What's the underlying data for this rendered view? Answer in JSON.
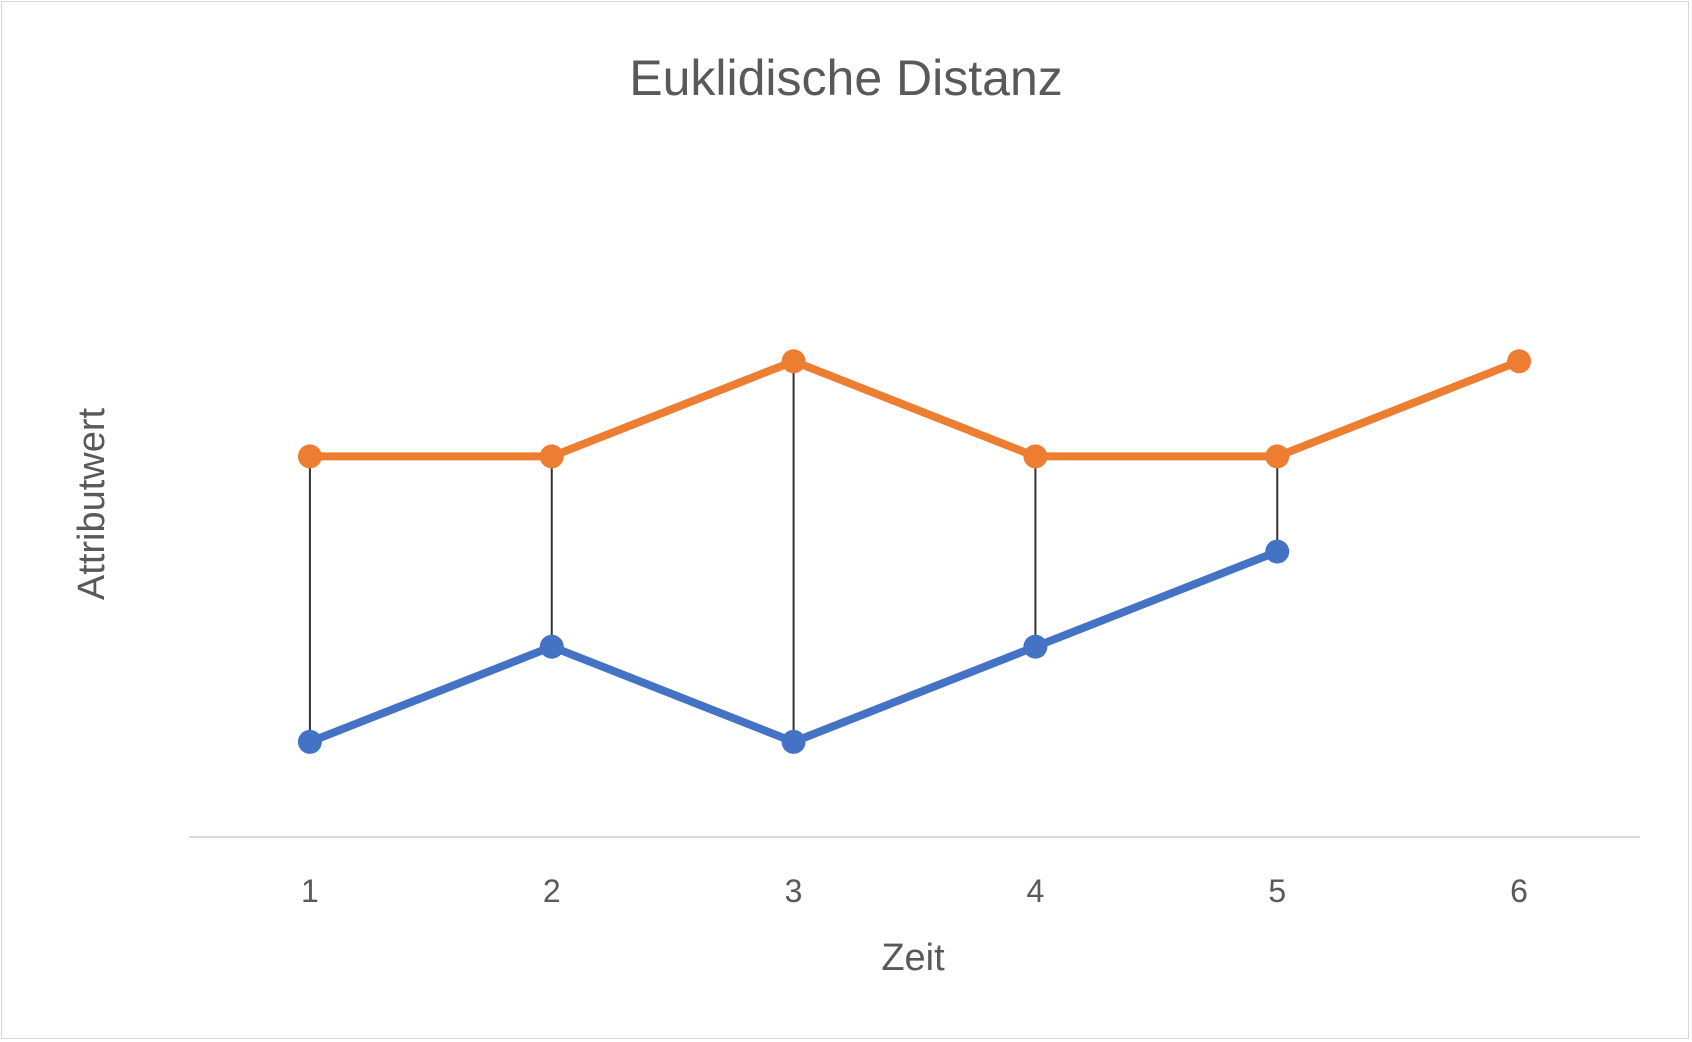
{
  "chart_data": {
    "type": "line",
    "title": "Euklidische Distanz",
    "xlabel": "Zeit",
    "ylabel": "Attributwert",
    "categories": [
      "1",
      "2",
      "3",
      "4",
      "5",
      "6"
    ],
    "x": [
      1,
      2,
      3,
      4,
      5,
      6
    ],
    "series": [
      {
        "color": "#ED7D31",
        "values": [
          5,
          5,
          6,
          5,
          5,
          6
        ]
      },
      {
        "color": "#4472C4",
        "values": [
          2,
          3,
          2,
          3,
          4,
          null
        ]
      }
    ],
    "connectors": {
      "x": [
        1,
        2,
        3,
        4,
        5
      ],
      "color": "#333333"
    },
    "ylim": [
      1,
      8
    ],
    "grid": false,
    "legend": "none",
    "y_tick_labels_visible": false
  }
}
